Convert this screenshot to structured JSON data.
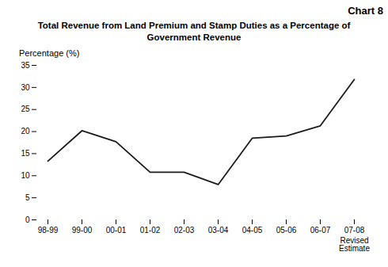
{
  "chart_data": {
    "type": "line",
    "title": "Total Revenue from Land Premium and Stamp Duties as a Percentage of\nGovernment Revenue",
    "ylabel": "Percentage (%)",
    "annotations": [
      "Chart 8",
      "Revised\nEstimate"
    ],
    "categories": [
      "98-99",
      "99-00",
      "00-01",
      "01-02",
      "02-03",
      "03-04",
      "04-05",
      "05-06",
      "06-07",
      "07-08"
    ],
    "values": [
      13.3,
      20.2,
      17.7,
      10.8,
      10.8,
      8.0,
      18.5,
      19.0,
      21.3,
      31.8
    ],
    "color": "#1a1a1a",
    "ylim": [
      0,
      35
    ],
    "yticks": [
      0,
      5,
      10,
      15,
      20,
      25,
      30,
      35
    ],
    "grid": false
  }
}
